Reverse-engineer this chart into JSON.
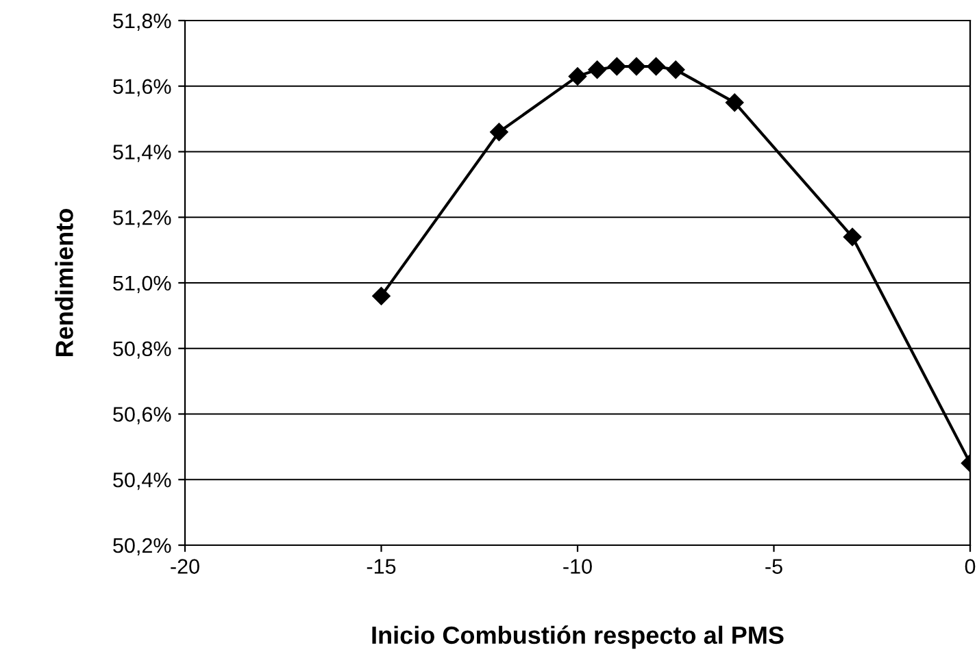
{
  "chart_data": {
    "type": "line",
    "xlabel": "Inicio Combustión respecto al PMS",
    "ylabel": "Rendimiento",
    "x": [
      -15,
      -12,
      -10,
      -9.5,
      -9,
      -8.5,
      -8,
      -7.5,
      -6,
      -3,
      0
    ],
    "series": [
      {
        "color": "#000000",
        "values": [
          50.96,
          51.46,
          51.63,
          51.65,
          51.66,
          51.66,
          51.66,
          51.65,
          51.55,
          51.14,
          50.45
        ]
      }
    ],
    "xlim": [
      -20,
      0
    ],
    "xticks": [
      -20,
      -15,
      -10,
      -5,
      0
    ],
    "ylim": [
      50.2,
      51.8
    ],
    "yticks": [
      {
        "value": 50.2,
        "label": "50,2%"
      },
      {
        "value": 50.4,
        "label": "50,4%"
      },
      {
        "value": 50.6,
        "label": "50,6%"
      },
      {
        "value": 50.8,
        "label": "50,8%"
      },
      {
        "value": 51.0,
        "label": "51,0%"
      },
      {
        "value": 51.2,
        "label": "51,2%"
      },
      {
        "value": 51.4,
        "label": "51,4%"
      },
      {
        "value": 51.6,
        "label": "51,6%"
      },
      {
        "value": 51.8,
        "label": "51,8%"
      }
    ],
    "grid": "y",
    "marker": "diamond",
    "line_style": "solid",
    "legend": false
  }
}
